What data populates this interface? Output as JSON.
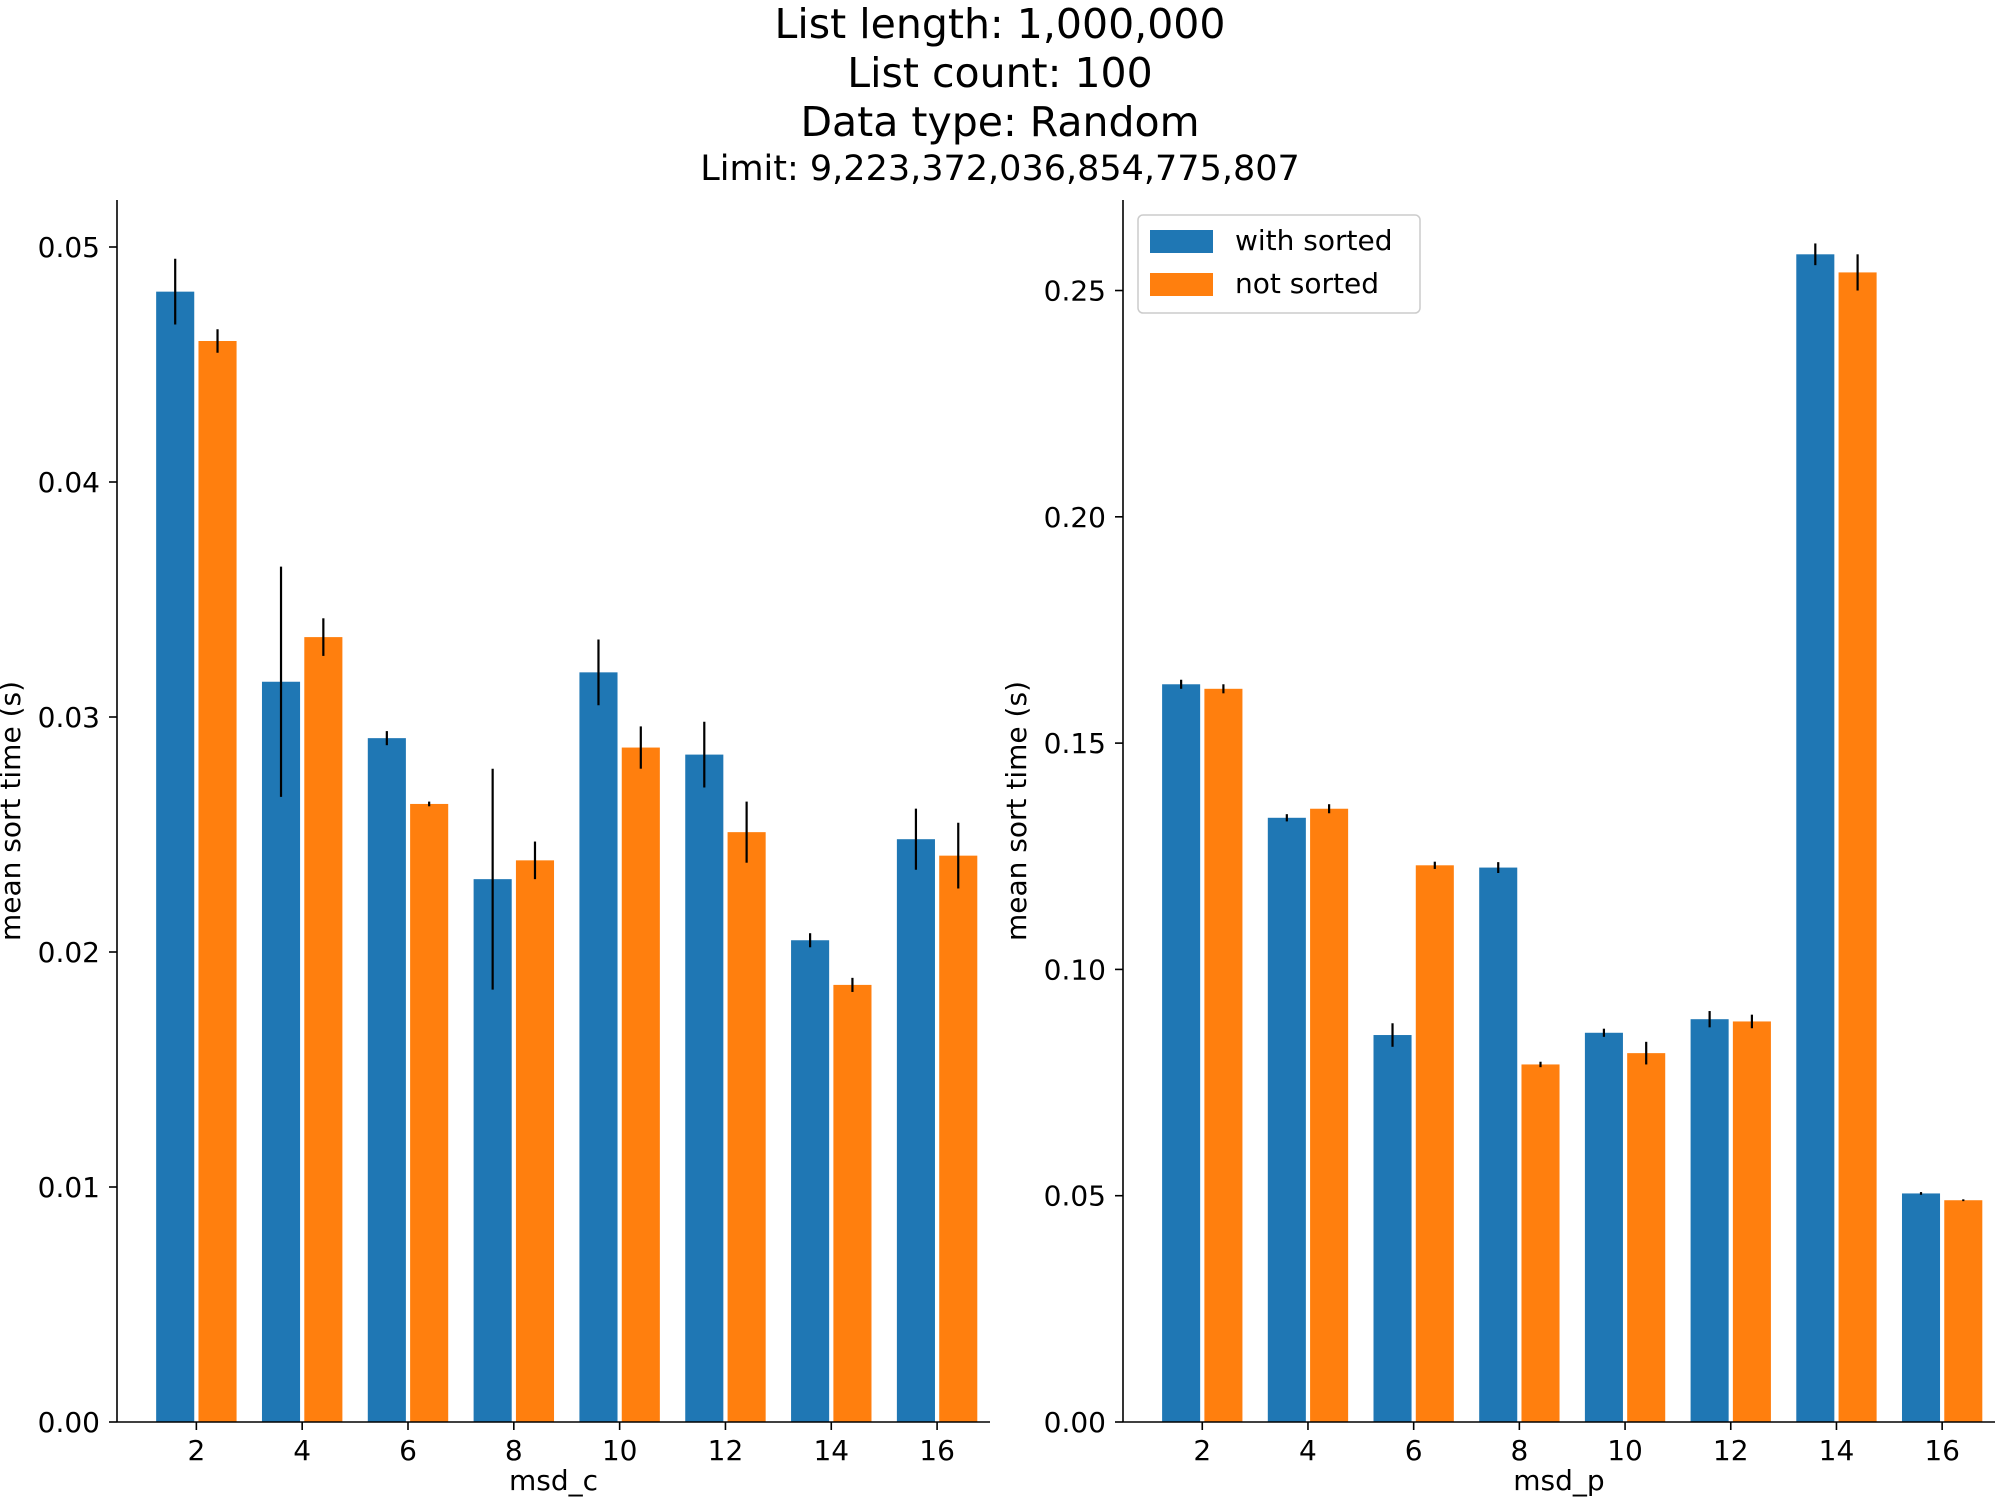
{
  "figure": {
    "title_lines": [
      "List length: 1,000,000",
      "List count: 100",
      "Data type: Random"
    ],
    "subtitle": "Limit: 9,223,372,036,854,775,807"
  },
  "chart_data": [
    {
      "type": "bar",
      "xlabel": "msd_c",
      "ylabel": "mean sort time (s)",
      "categories": [
        "2",
        "4",
        "6",
        "8",
        "10",
        "12",
        "14",
        "16"
      ],
      "ylim": [
        0,
        0.052
      ],
      "yticks": [
        0.0,
        0.01,
        0.02,
        0.03,
        0.04,
        0.05
      ],
      "ytick_labels": [
        "0.00",
        "0.01",
        "0.02",
        "0.03",
        "0.04",
        "0.05"
      ],
      "grid": false,
      "legend": null,
      "series": [
        {
          "name": "with sorted",
          "color": "#1f77b4",
          "values": [
            0.0481,
            0.0315,
            0.0291,
            0.0231,
            0.0319,
            0.0284,
            0.0205,
            0.0248
          ],
          "errors": [
            0.0014,
            0.0049,
            0.0003,
            0.0047,
            0.0014,
            0.0014,
            0.0003,
            0.0013
          ]
        },
        {
          "name": "not sorted",
          "color": "#ff7f0e",
          "values": [
            0.046,
            0.0334,
            0.0263,
            0.0239,
            0.0287,
            0.0251,
            0.0186,
            0.0241
          ],
          "errors": [
            0.0005,
            0.0008,
            0.0001,
            0.0008,
            0.0009,
            0.0013,
            0.0003,
            0.0014
          ]
        }
      ]
    },
    {
      "type": "bar",
      "xlabel": "msd_p",
      "ylabel": "mean sort time (s)",
      "categories": [
        "2",
        "4",
        "6",
        "8",
        "10",
        "12",
        "14",
        "16"
      ],
      "ylim": [
        0,
        0.27
      ],
      "yticks": [
        0.0,
        0.05,
        0.1,
        0.15,
        0.2,
        0.25
      ],
      "ytick_labels": [
        "0.00",
        "0.05",
        "0.10",
        "0.15",
        "0.20",
        "0.25"
      ],
      "grid": false,
      "legend": "top-left",
      "series": [
        {
          "name": "with sorted",
          "color": "#1f77b4",
          "values": [
            0.163,
            0.1335,
            0.0855,
            0.1225,
            0.086,
            0.089,
            0.258,
            0.0505
          ],
          "errors": [
            0.001,
            0.0008,
            0.0026,
            0.0012,
            0.0009,
            0.0018,
            0.0024,
            0.0003
          ]
        },
        {
          "name": "not sorted",
          "color": "#ff7f0e",
          "values": [
            0.162,
            0.1355,
            0.123,
            0.079,
            0.0815,
            0.0885,
            0.254,
            0.049
          ],
          "errors": [
            0.001,
            0.001,
            0.0008,
            0.0006,
            0.0025,
            0.0015,
            0.004,
            0.0002
          ]
        }
      ]
    }
  ]
}
